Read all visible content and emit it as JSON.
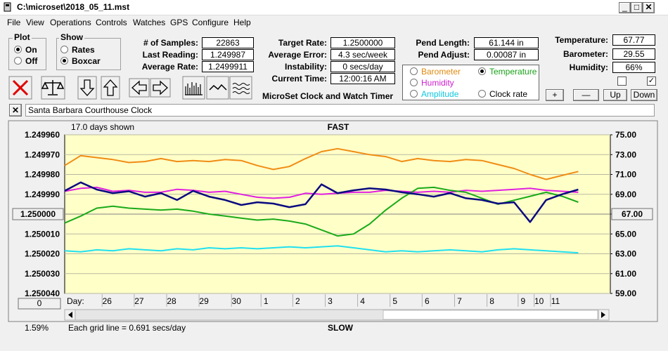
{
  "window": {
    "title": "C:\\microset\\2018_05_11.mst"
  },
  "menu": [
    "File",
    "View",
    "Operations",
    "Controls",
    "Watches",
    "GPS",
    "Configure",
    "Help"
  ],
  "plot": {
    "title": "Plot",
    "options": [
      {
        "label": "On",
        "checked": true
      },
      {
        "label": "Off",
        "checked": false
      }
    ]
  },
  "show": {
    "title": "Show",
    "options": [
      {
        "label": "Rates",
        "checked": false
      },
      {
        "label": "Boxcar",
        "checked": true
      }
    ]
  },
  "fields": [
    [
      {
        "label": "# of Samples:",
        "value": "22863"
      },
      {
        "label": "Last Reading:",
        "value": "1.249987"
      },
      {
        "label": "Average Rate:",
        "value": "1.2499911"
      }
    ],
    [
      {
        "label": "Target Rate:",
        "value": "1.2500000"
      },
      {
        "label": "Average Error:",
        "value": "4.3 sec/week"
      },
      {
        "label": "Instability:",
        "value": "0 secs/day"
      },
      {
        "label": "Current Time:",
        "value": "12:00:16 AM"
      }
    ],
    [
      {
        "label": "Pend Length:",
        "value": "61.144 in"
      },
      {
        "label": "Pend Adjust:",
        "value": "0.00087 in"
      }
    ],
    [
      {
        "label": "Temperature:",
        "value": "67.77"
      },
      {
        "label": "Barometer:",
        "value": "29.55"
      },
      {
        "label": "Humidity:",
        "value": "66%"
      }
    ]
  ],
  "app_subtitle": "MicroSet Clock and Watch Timer",
  "legend_options": [
    {
      "label": "Barometer",
      "color": "#e08a10",
      "checked": false
    },
    {
      "label": "Temperature",
      "color": "#18a018",
      "checked": true
    },
    {
      "label": "Humidity",
      "color": "#d020d0",
      "checked": false
    },
    {
      "label": "Amplitude",
      "color": "#10c8e0",
      "checked": false
    },
    {
      "label": "Clock rate",
      "color": "#000000",
      "checked": false
    }
  ],
  "checkboxes": [
    false,
    true
  ],
  "buttons": [
    "+",
    "—",
    "Up",
    "Down"
  ],
  "clock_name": "Santa Barbara Courthouse Clock",
  "chart_data": {
    "type": "line",
    "subtitle": "17.0 days shown",
    "top_label": "FAST",
    "bottom_label": "SLOW",
    "x_label": "Day:",
    "note": "Each grid line = 0.691 secs/day",
    "percent": "1.59%",
    "scroll_button": "0",
    "x": [
      0,
      0.5,
      1,
      1.5,
      2,
      2.5,
      3,
      3.5,
      4,
      4.5,
      5,
      5.5,
      6,
      6.5,
      7,
      7.5,
      8,
      8.5,
      9,
      9.5,
      10,
      10.5,
      11,
      11.5,
      12,
      12.5,
      13,
      13.5,
      14,
      14.5,
      15,
      15.5,
      16
    ],
    "xlim": [
      0,
      17
    ],
    "xticks": [
      {
        "value": 1.32,
        "label": "26"
      },
      {
        "value": 2.32,
        "label": "27"
      },
      {
        "value": 3.33,
        "label": "28"
      },
      {
        "value": 4.34,
        "label": "29"
      },
      {
        "value": 5.35,
        "label": "30"
      },
      {
        "value": 6.27,
        "label": "1"
      },
      {
        "value": 7.26,
        "label": "2"
      },
      {
        "value": 8.27,
        "label": "3"
      },
      {
        "value": 9.28,
        "label": "4"
      },
      {
        "value": 10.29,
        "label": "5"
      },
      {
        "value": 11.29,
        "label": "6"
      },
      {
        "value": 12.3,
        "label": "7"
      },
      {
        "value": 13.31,
        "label": "8"
      },
      {
        "value": 14.28,
        "label": "9"
      },
      {
        "value": 14.78,
        "label": "10"
      },
      {
        "value": 15.29,
        "label": "11"
      }
    ],
    "ylim": [
      1.25004,
      1.24996
    ],
    "yticks": [
      {
        "value": 1.24996,
        "label": "1.249960"
      },
      {
        "value": 1.24997,
        "label": "1.249970"
      },
      {
        "value": 1.24998,
        "label": "1.249980"
      },
      {
        "value": 1.24999,
        "label": "1.249990"
      },
      {
        "value": 1.25,
        "label": "1.250000",
        "button": true
      },
      {
        "value": 1.25001,
        "label": "1.250010"
      },
      {
        "value": 1.25002,
        "label": "1.250020"
      },
      {
        "value": 1.25003,
        "label": "1.250030"
      },
      {
        "value": 1.25004,
        "label": "1.250040"
      }
    ],
    "y2lim": [
      59,
      75
    ],
    "y2ticks": [
      {
        "value": 75,
        "label": "75.00"
      },
      {
        "value": 73,
        "label": "73.00"
      },
      {
        "value": 71,
        "label": "71.00"
      },
      {
        "value": 69,
        "label": "69.00"
      },
      {
        "value": 67,
        "label": "67.00",
        "button": true
      },
      {
        "value": 65,
        "label": "65.00"
      },
      {
        "value": 63,
        "label": "63.00"
      },
      {
        "value": 61,
        "label": "61.00"
      },
      {
        "value": 59,
        "label": "59.00"
      }
    ],
    "grid": true,
    "series": [
      {
        "color": "#f08c14",
        "axis": "y2",
        "values": [
          71.9,
          72.9,
          72.7,
          72.5,
          72.2,
          72.3,
          72.6,
          72.3,
          72.4,
          72.3,
          72.5,
          72.4,
          71.9,
          71.5,
          71.8,
          72.6,
          73.3,
          73.6,
          73.3,
          73.0,
          72.8,
          72.3,
          72.6,
          72.4,
          72.3,
          72.5,
          72.4,
          72.0,
          71.6,
          71.0,
          70.5,
          70.9,
          71.3
        ]
      },
      {
        "color": "#e020e0",
        "axis": "y2",
        "values": [
          69.3,
          69.6,
          69.7,
          69.3,
          69.4,
          69.2,
          69.2,
          69.5,
          69.4,
          69.2,
          69.3,
          69.0,
          68.7,
          68.6,
          68.7,
          69.1,
          69.0,
          69.1,
          69.2,
          69.2,
          69.4,
          69.3,
          69.2,
          69.3,
          69.2,
          69.4,
          69.3,
          69.4,
          69.5,
          69.6,
          69.4,
          69.3,
          69.2
        ]
      },
      {
        "color": "#1aaa1a",
        "axis": "y2",
        "values": [
          66.1,
          66.8,
          67.6,
          67.8,
          67.6,
          67.5,
          67.4,
          67.5,
          67.3,
          67.0,
          66.8,
          66.6,
          66.4,
          66.5,
          66.3,
          66.0,
          65.4,
          64.8,
          65.0,
          66.0,
          67.4,
          68.6,
          69.6,
          69.7,
          69.4,
          69.2,
          68.6,
          68.0,
          68.4,
          68.8,
          69.2,
          68.8,
          68.2
        ]
      },
      {
        "color": "#20e0f0",
        "axis": "y2",
        "values": [
          63.3,
          63.2,
          63.4,
          63.3,
          63.5,
          63.4,
          63.3,
          63.5,
          63.4,
          63.6,
          63.5,
          63.6,
          63.5,
          63.6,
          63.7,
          63.6,
          63.7,
          63.8,
          63.6,
          63.4,
          63.2,
          63.3,
          63.2,
          63.3,
          63.4,
          63.3,
          63.2,
          63.4,
          63.5,
          63.4,
          63.3,
          63.2,
          63.1
        ]
      },
      {
        "color": "#0a0a80",
        "values": [
          1.2499883,
          1.249984,
          1.2499876,
          1.2499894,
          1.2499885,
          1.2499912,
          1.2499894,
          1.2499929,
          1.2499883,
          1.2499912,
          1.2499929,
          1.2499954,
          1.249994,
          1.2499947,
          1.2499965,
          1.249995,
          1.249985,
          1.2499894,
          1.249988,
          1.249987,
          1.2499876,
          1.249989,
          1.24999,
          1.2499912,
          1.2499894,
          1.249992,
          1.2499929,
          1.2499947,
          1.249994,
          1.250004,
          1.2499929,
          1.24999,
          1.2499876
        ]
      }
    ]
  }
}
